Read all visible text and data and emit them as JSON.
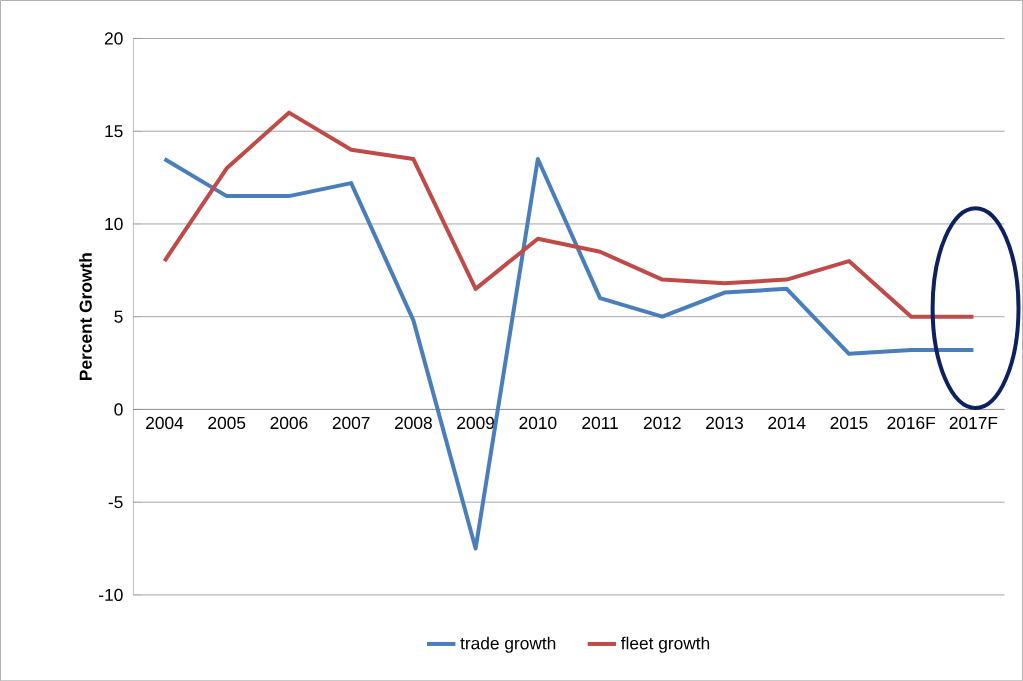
{
  "chart_data": {
    "type": "line",
    "ylabel": "Percent Growth",
    "categories": [
      "2004",
      "2005",
      "2006",
      "2007",
      "2008",
      "2009",
      "2010",
      "2011",
      "2012",
      "2013",
      "2014",
      "2015",
      "2016F",
      "2017F"
    ],
    "series": [
      {
        "name": "trade growth",
        "color": "#4a7ebb",
        "values": [
          13.5,
          11.5,
          11.5,
          12.2,
          4.8,
          -7.5,
          13.5,
          6,
          5,
          6.3,
          6.5,
          3,
          3.2,
          3.2
        ]
      },
      {
        "name": "fleet growth",
        "color": "#be4b48",
        "values": [
          8,
          13,
          16,
          14,
          13.5,
          6.5,
          9.2,
          8.5,
          7,
          6.8,
          7,
          8,
          5,
          5
        ]
      }
    ],
    "ylim": [
      -10,
      20
    ],
    "yticks": [
      -10,
      -5,
      0,
      5,
      10,
      15,
      20
    ],
    "grid": "y",
    "legend": "bottom",
    "marker": "none",
    "line_style": "solid"
  }
}
